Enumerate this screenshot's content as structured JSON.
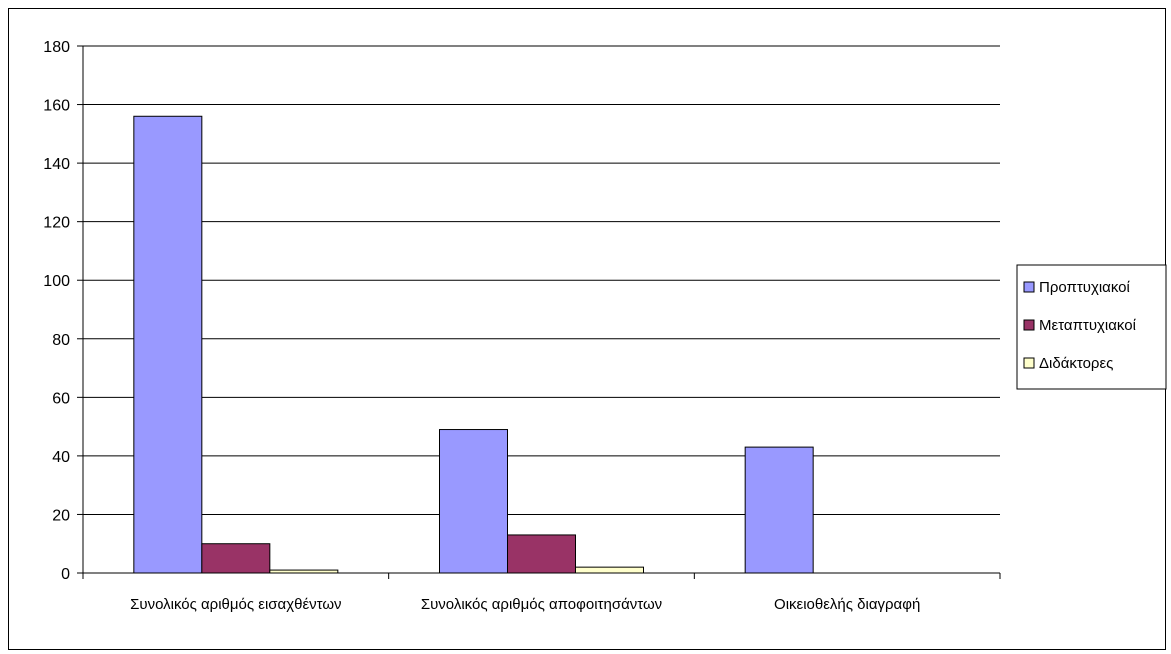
{
  "chart_data": {
    "type": "bar",
    "categories": [
      "Συνολικός αριθμός εισαχθέντων",
      "Συνολικός αριθμός αποφοιτησάντων",
      "Οικειοθελής διαγραφή"
    ],
    "series": [
      {
        "name": "Προπτυχιακοί",
        "color": "#9999ff",
        "values": [
          156,
          49,
          43
        ]
      },
      {
        "name": "Μεταπτυχιακοί",
        "color": "#993366",
        "values": [
          10,
          13,
          0
        ]
      },
      {
        "name": "Διδάκτορες",
        "color": "#ffffcc",
        "values": [
          1,
          2,
          0
        ]
      }
    ],
    "yticks": [
      "0",
      "20",
      "40",
      "60",
      "80",
      "100",
      "120",
      "140",
      "160",
      "180"
    ],
    "ylim": [
      0,
      180
    ],
    "grid": true,
    "legend_position": "right"
  }
}
